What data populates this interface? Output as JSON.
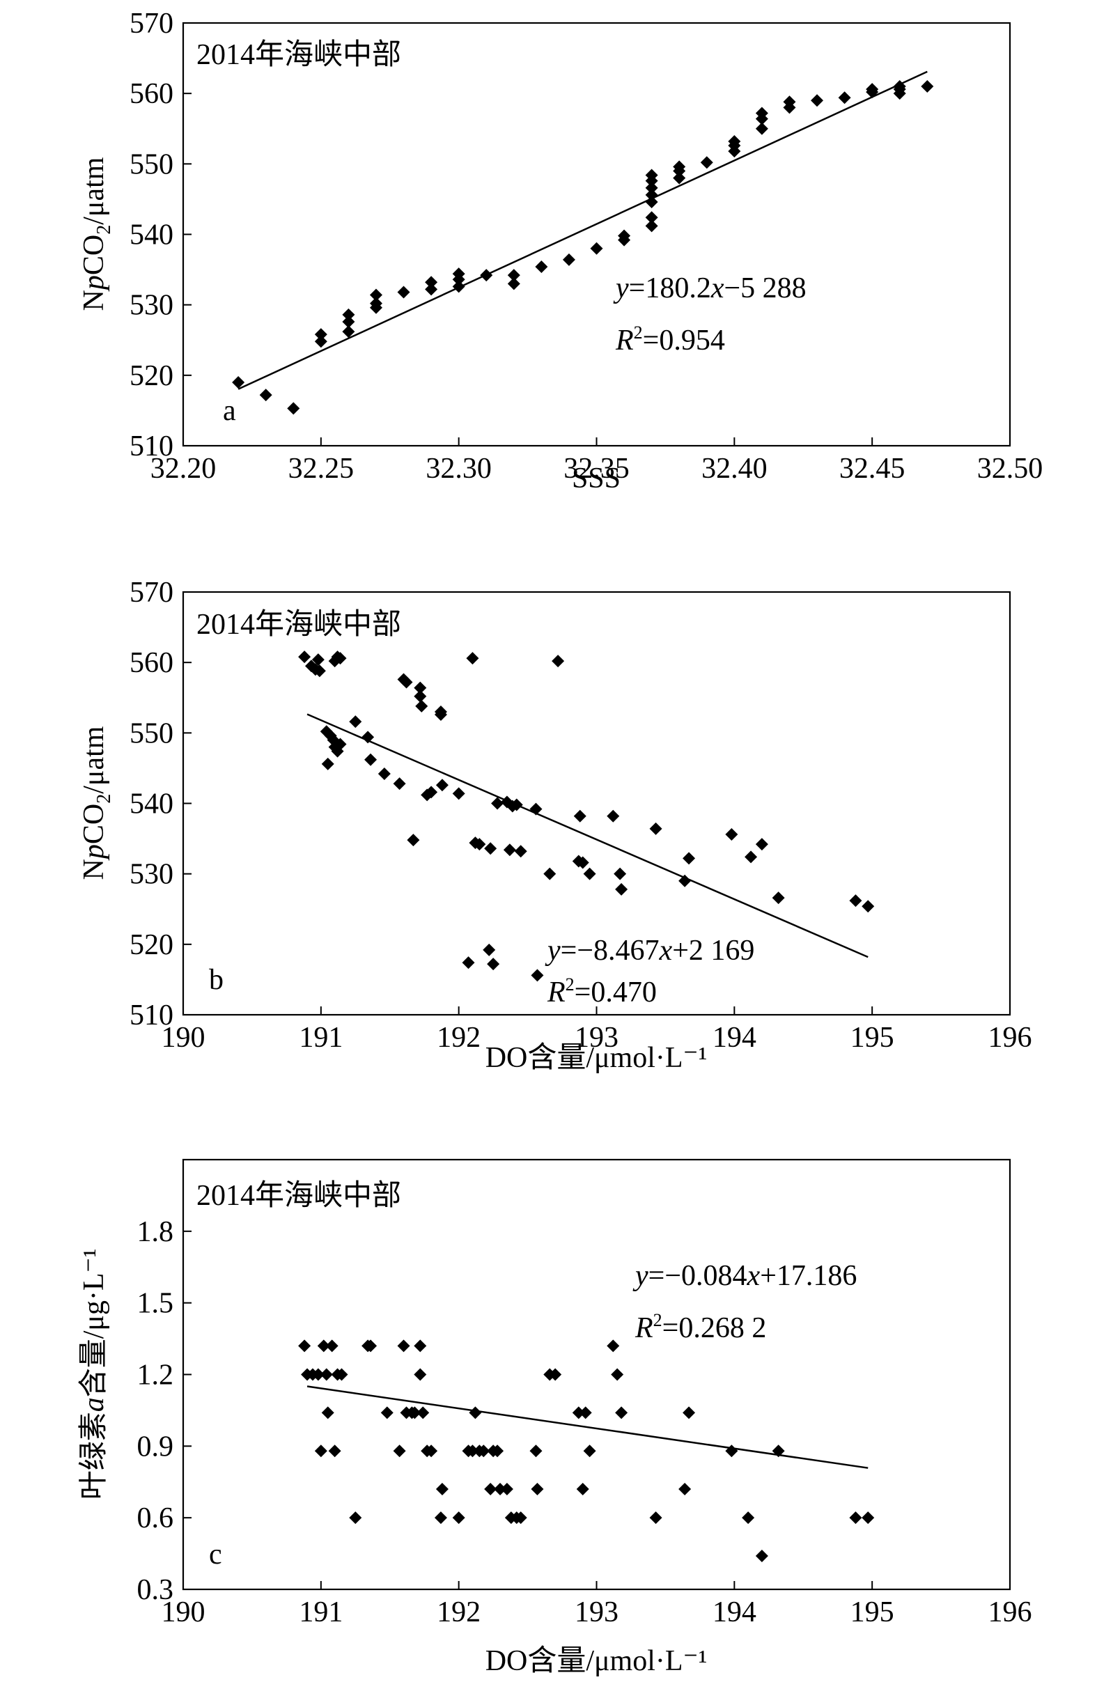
{
  "chart_data": [
    {
      "type": "scatter",
      "title": "2014年海峡中部",
      "panel_label": "a",
      "xlabel": "SSS",
      "ylabel_parts": [
        "N",
        "p",
        "CO",
        "2",
        "/μatm"
      ],
      "xlim": [
        32.2,
        32.5
      ],
      "ylim": [
        510,
        570
      ],
      "xticks": [
        "32.20",
        "32.25",
        "32.30",
        "32.35",
        "32.40",
        "32.45",
        "32.50"
      ],
      "yticks": [
        "510",
        "520",
        "530",
        "540",
        "550",
        "560",
        "570"
      ],
      "equation": {
        "y": "y",
        "eq": "=180.2",
        "x": "x",
        "rest": "−5 288"
      },
      "r2": {
        "R": "R",
        "sup": "2",
        "val": "=0.954"
      },
      "fit": {
        "slope": 180.2,
        "intercept": -5288,
        "xrange": [
          32.22,
          32.47
        ]
      },
      "points": [
        [
          32.22,
          519
        ],
        [
          32.23,
          517.2
        ],
        [
          32.24,
          515.3
        ],
        [
          32.25,
          524.8
        ],
        [
          32.25,
          525.8
        ],
        [
          32.26,
          526.2
        ],
        [
          32.26,
          527.6
        ],
        [
          32.26,
          528.6
        ],
        [
          32.27,
          529.6
        ],
        [
          32.27,
          530.2
        ],
        [
          32.27,
          531.4
        ],
        [
          32.28,
          531.8
        ],
        [
          32.29,
          532.2
        ],
        [
          32.29,
          533.2
        ],
        [
          32.3,
          532.6
        ],
        [
          32.3,
          533.6
        ],
        [
          32.3,
          534.4
        ],
        [
          32.31,
          534.2
        ],
        [
          32.32,
          533.0
        ],
        [
          32.32,
          534.2
        ],
        [
          32.33,
          535.4
        ],
        [
          32.34,
          536.4
        ],
        [
          32.35,
          538.0
        ],
        [
          32.36,
          539.2
        ],
        [
          32.36,
          539.8
        ],
        [
          32.37,
          541.2
        ],
        [
          32.37,
          542.4
        ],
        [
          32.37,
          544.6
        ],
        [
          32.37,
          545.6
        ],
        [
          32.37,
          546.6
        ],
        [
          32.37,
          547.6
        ],
        [
          32.37,
          548.4
        ],
        [
          32.38,
          548.0
        ],
        [
          32.38,
          549.0
        ],
        [
          32.38,
          549.6
        ],
        [
          32.39,
          550.2
        ],
        [
          32.4,
          551.8
        ],
        [
          32.4,
          552.6
        ],
        [
          32.4,
          553.2
        ],
        [
          32.41,
          555.0
        ],
        [
          32.41,
          556.4
        ],
        [
          32.41,
          557.2
        ],
        [
          32.42,
          558.0
        ],
        [
          32.42,
          558.8
        ],
        [
          32.43,
          559.0
        ],
        [
          32.44,
          559.4
        ],
        [
          32.45,
          560.2
        ],
        [
          32.45,
          560.6
        ],
        [
          32.46,
          560.0
        ],
        [
          32.46,
          560.6
        ],
        [
          32.46,
          561.0
        ],
        [
          32.47,
          561.0
        ]
      ]
    },
    {
      "type": "scatter",
      "title": "2014年海峡中部",
      "panel_label": "b",
      "xlabel": "DO含量/μmol·L⁻¹",
      "ylabel_parts": [
        "N",
        "p",
        "CO",
        "2",
        "/μatm"
      ],
      "xlim": [
        190,
        196
      ],
      "ylim": [
        510,
        570
      ],
      "xticks": [
        "190",
        "191",
        "192",
        "193",
        "194",
        "195",
        "196"
      ],
      "yticks": [
        "510",
        "520",
        "530",
        "540",
        "550",
        "560",
        "570"
      ],
      "equation": {
        "y": "y",
        "eq": "=−8.467",
        "x": "x",
        "rest": "+2 169"
      },
      "r2": {
        "R": "R",
        "sup": "2",
        "val": "=0.470"
      },
      "fit": {
        "slope": -8.467,
        "intercept": 2169,
        "xrange": [
          190.9,
          194.97
        ]
      },
      "points": [
        [
          190.88,
          560.8
        ],
        [
          190.93,
          559.5
        ],
        [
          190.96,
          559.0
        ],
        [
          190.98,
          560.4
        ],
        [
          190.99,
          558.8
        ],
        [
          191.1,
          560.2
        ],
        [
          191.12,
          560.8
        ],
        [
          191.14,
          560.6
        ],
        [
          191.04,
          550.2
        ],
        [
          191.07,
          549.6
        ],
        [
          191.09,
          549.0
        ],
        [
          191.1,
          548.0
        ],
        [
          191.12,
          547.4
        ],
        [
          191.14,
          548.4
        ],
        [
          191.05,
          545.6
        ],
        [
          191.25,
          551.6
        ],
        [
          191.34,
          549.4
        ],
        [
          191.36,
          546.2
        ],
        [
          191.46,
          544.2
        ],
        [
          191.57,
          542.8
        ],
        [
          191.6,
          557.6
        ],
        [
          191.62,
          557.2
        ],
        [
          191.72,
          556.4
        ],
        [
          191.72,
          555.2
        ],
        [
          191.73,
          553.8
        ],
        [
          191.87,
          553.0
        ],
        [
          191.87,
          552.6
        ],
        [
          191.77,
          541.2
        ],
        [
          191.8,
          541.6
        ],
        [
          191.88,
          542.6
        ],
        [
          191.67,
          534.8
        ],
        [
          192.0,
          541.4
        ],
        [
          192.1,
          560.6
        ],
        [
          192.12,
          534.4
        ],
        [
          192.15,
          534.2
        ],
        [
          192.23,
          533.6
        ],
        [
          192.28,
          540.0
        ],
        [
          192.35,
          540.2
        ],
        [
          192.37,
          533.4
        ],
        [
          192.39,
          539.6
        ],
        [
          192.42,
          539.8
        ],
        [
          192.45,
          533.2
        ],
        [
          192.56,
          539.2
        ],
        [
          192.66,
          530.0
        ],
        [
          192.72,
          560.2
        ],
        [
          192.88,
          538.2
        ],
        [
          192.87,
          531.8
        ],
        [
          192.9,
          531.6
        ],
        [
          192.95,
          530.0
        ],
        [
          193.12,
          538.2
        ],
        [
          193.17,
          530.0
        ],
        [
          193.18,
          527.8
        ],
        [
          193.43,
          536.4
        ],
        [
          193.64,
          529.0
        ],
        [
          193.67,
          532.2
        ],
        [
          193.98,
          535.6
        ],
        [
          194.12,
          532.4
        ],
        [
          194.2,
          534.2
        ],
        [
          194.32,
          526.6
        ],
        [
          194.88,
          526.2
        ],
        [
          194.97,
          525.4
        ],
        [
          192.07,
          517.4
        ],
        [
          192.22,
          519.2
        ],
        [
          192.25,
          517.2
        ],
        [
          192.57,
          515.6
        ]
      ]
    },
    {
      "type": "scatter",
      "title": "2014年海峡中部",
      "panel_label": "c",
      "xlabel": "DO含量/μmol·L⁻¹",
      "ylabel_parts": [
        "叶绿素",
        "a",
        "含量/μg·L⁻¹"
      ],
      "xlim": [
        190,
        196
      ],
      "ylim": [
        0.3,
        2.1
      ],
      "xticks": [
        "190",
        "191",
        "192",
        "193",
        "194",
        "195",
        "196"
      ],
      "yticks": [
        "0.3",
        "0.6",
        "0.9",
        "1.2",
        "1.5",
        "1.8"
      ],
      "equation": {
        "y": "y",
        "eq": "=−0.084",
        "x": "x",
        "rest": "+17.186"
      },
      "r2": {
        "R": "R",
        "sup": "2",
        "val": "=0.268 2"
      },
      "fit": {
        "slope": -0.084,
        "intercept": 17.186,
        "xrange": [
          190.9,
          194.97
        ]
      },
      "points": [
        [
          190.88,
          1.32
        ],
        [
          190.9,
          1.2
        ],
        [
          190.94,
          1.2
        ],
        [
          190.98,
          1.2
        ],
        [
          191.0,
          0.88
        ],
        [
          191.02,
          1.32
        ],
        [
          191.04,
          1.2
        ],
        [
          191.05,
          1.04
        ],
        [
          191.08,
          1.32
        ],
        [
          191.1,
          0.88
        ],
        [
          191.12,
          1.2
        ],
        [
          191.15,
          1.2
        ],
        [
          191.25,
          0.6
        ],
        [
          191.34,
          1.32
        ],
        [
          191.36,
          1.32
        ],
        [
          191.48,
          1.04
        ],
        [
          191.57,
          0.88
        ],
        [
          191.6,
          1.32
        ],
        [
          191.62,
          1.04
        ],
        [
          191.66,
          1.04
        ],
        [
          191.68,
          1.04
        ],
        [
          191.72,
          1.32
        ],
        [
          191.72,
          1.2
        ],
        [
          191.74,
          1.04
        ],
        [
          191.77,
          0.88
        ],
        [
          191.8,
          0.88
        ],
        [
          191.87,
          0.6
        ],
        [
          191.88,
          0.72
        ],
        [
          192.0,
          0.6
        ],
        [
          192.07,
          0.88
        ],
        [
          192.1,
          0.88
        ],
        [
          192.12,
          1.04
        ],
        [
          192.15,
          0.88
        ],
        [
          192.18,
          0.88
        ],
        [
          192.23,
          0.72
        ],
        [
          192.25,
          0.88
        ],
        [
          192.28,
          0.88
        ],
        [
          192.3,
          0.72
        ],
        [
          192.35,
          0.72
        ],
        [
          192.38,
          0.6
        ],
        [
          192.42,
          0.6
        ],
        [
          192.45,
          0.6
        ],
        [
          192.56,
          0.88
        ],
        [
          192.57,
          0.72
        ],
        [
          192.66,
          1.2
        ],
        [
          192.7,
          1.2
        ],
        [
          192.87,
          1.04
        ],
        [
          192.9,
          0.72
        ],
        [
          192.92,
          1.04
        ],
        [
          192.95,
          0.88
        ],
        [
          193.12,
          1.32
        ],
        [
          193.15,
          1.2
        ],
        [
          193.18,
          1.04
        ],
        [
          193.43,
          0.6
        ],
        [
          193.64,
          0.72
        ],
        [
          193.67,
          1.04
        ],
        [
          193.98,
          0.88
        ],
        [
          194.1,
          0.6
        ],
        [
          194.2,
          0.44
        ],
        [
          194.32,
          0.88
        ],
        [
          194.88,
          0.6
        ],
        [
          194.97,
          0.6
        ]
      ]
    }
  ]
}
